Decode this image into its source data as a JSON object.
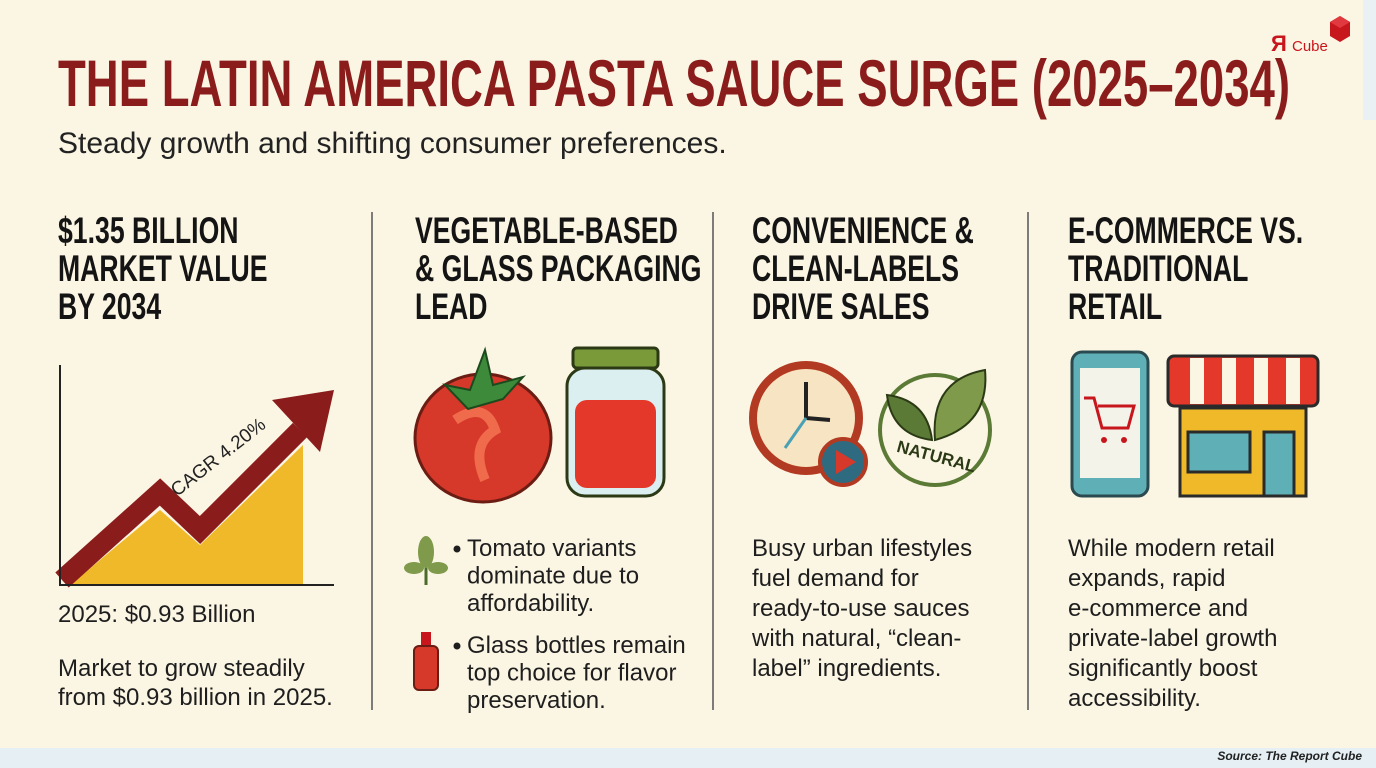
{
  "header": {
    "logo": {
      "mark": "Я",
      "text": "Cube"
    },
    "title": "THE LATIN AMERICA PASTA SAUCE SURGE (2025–2034)",
    "subtitle": "Steady growth and shifting consumer preferences."
  },
  "columns": [
    {
      "heading": [
        "$1.35 BILLION",
        "MARKET VALUE",
        "BY 2034"
      ],
      "chart_label": "CAGR 4.20%",
      "caption": "2025: $0.93 Billion",
      "body": [
        "Market to grow steadily",
        "from $0.93 billion in 2025."
      ]
    },
    {
      "heading": [
        "VEGETABLE-BASED",
        "& GLASS PACKAGING",
        "LEAD"
      ],
      "bullets": [
        {
          "lines": [
            "Tomato variants",
            "dominate due to",
            "affordability."
          ]
        },
        {
          "lines": [
            "Glass bottles remain",
            "top choice for flavor",
            "preservation."
          ]
        }
      ]
    },
    {
      "heading": [
        "CONVENIENCE &",
        "CLEAN-LABELS",
        "DRIVE SALES"
      ],
      "badge": "NATURAL",
      "body": [
        "Busy urban lifestyles",
        "fuel demand for",
        "ready-to-use sauces",
        "with natural, “clean-",
        "label” ingredients."
      ]
    },
    {
      "heading": [
        "E-COMMERCE VS.",
        "TRADITIONAL",
        "RETAIL"
      ],
      "body": [
        "While modern retail",
        "expands, rapid",
        "e-commerce and",
        "private-label growth",
        "significantly boost",
        "accessibility."
      ]
    }
  ],
  "footer": {
    "source": "Source: The Report Cube"
  }
}
